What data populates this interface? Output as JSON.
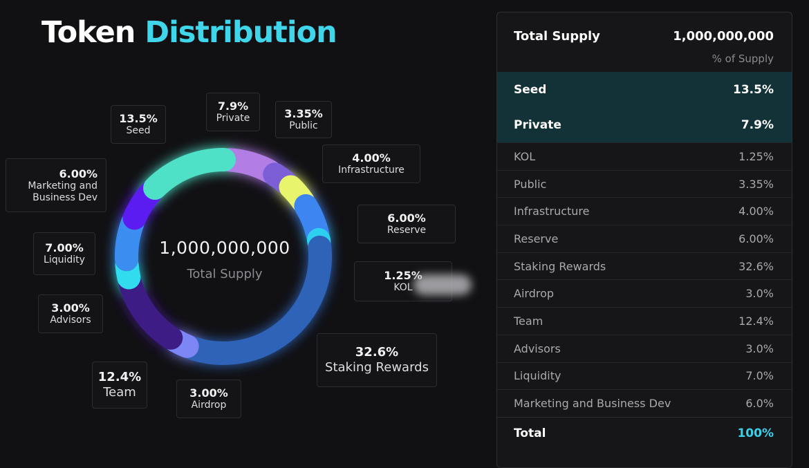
{
  "title": {
    "word1": "Token",
    "word2": "Distribution"
  },
  "center": {
    "value": "1,000,000,000",
    "label": "Total Supply"
  },
  "table": {
    "header_label": "Total Supply",
    "header_value": "1,000,000,000",
    "header_sub": "% of Supply",
    "highlight_rows": [
      {
        "label": "Seed",
        "value": "13.5%"
      },
      {
        "label": "Private",
        "value": "7.9%"
      }
    ],
    "rows": [
      {
        "label": "KOL",
        "value": "1.25%"
      },
      {
        "label": "Public",
        "value": "3.35%"
      },
      {
        "label": "Infrastructure",
        "value": "4.00%"
      },
      {
        "label": "Reserve",
        "value": "6.00%"
      },
      {
        "label": "Staking Rewards",
        "value": "32.6%"
      },
      {
        "label": "Airdrop",
        "value": "3.0%"
      },
      {
        "label": "Team",
        "value": "12.4%"
      },
      {
        "label": "Advisors",
        "value": "3.0%"
      },
      {
        "label": "Liquidity",
        "value": "7.0%"
      },
      {
        "label": "Marketing and Business Dev",
        "value": "6.0%"
      }
    ],
    "total_label": "Total",
    "total_value": "100%"
  },
  "chart_data": {
    "type": "pie",
    "title": "Token Distribution",
    "center_value": "1,000,000,000",
    "center_label": "Total Supply",
    "slices": [
      {
        "name": "Private",
        "value": 7.9,
        "label": "7.9%",
        "color": "#b27ee6"
      },
      {
        "name": "Public",
        "value": 3.35,
        "label": "3.35%",
        "color": "#7b5fd6"
      },
      {
        "name": "Infrastructure",
        "value": 4.0,
        "label": "4.00%",
        "color": "#e8f56c"
      },
      {
        "name": "Reserve",
        "value": 6.0,
        "label": "6.00%",
        "color": "#3d86f2"
      },
      {
        "name": "KOL",
        "value": 1.25,
        "label": "1.25%",
        "color": "#2ed0ef"
      },
      {
        "name": "Staking Rewards",
        "value": 32.6,
        "label": "32.6%",
        "color": "#2f63b8"
      },
      {
        "name": "Airdrop",
        "value": 3.0,
        "label": "3.00%",
        "color": "#7c86f5"
      },
      {
        "name": "Team",
        "value": 12.4,
        "label": "12.4%",
        "color": "#3e1f86"
      },
      {
        "name": "Advisors",
        "value": 3.0,
        "label": "3.00%",
        "color": "#33dcef"
      },
      {
        "name": "Liquidity",
        "value": 7.0,
        "label": "7.00%",
        "color": "#3a8df0"
      },
      {
        "name": "Marketing and Business Dev",
        "value": 6.0,
        "label": "6.00%",
        "color": "#5a1cf0"
      },
      {
        "name": "Seed",
        "value": 13.5,
        "label": "13.5%",
        "color": "#4fe0c8"
      }
    ]
  }
}
